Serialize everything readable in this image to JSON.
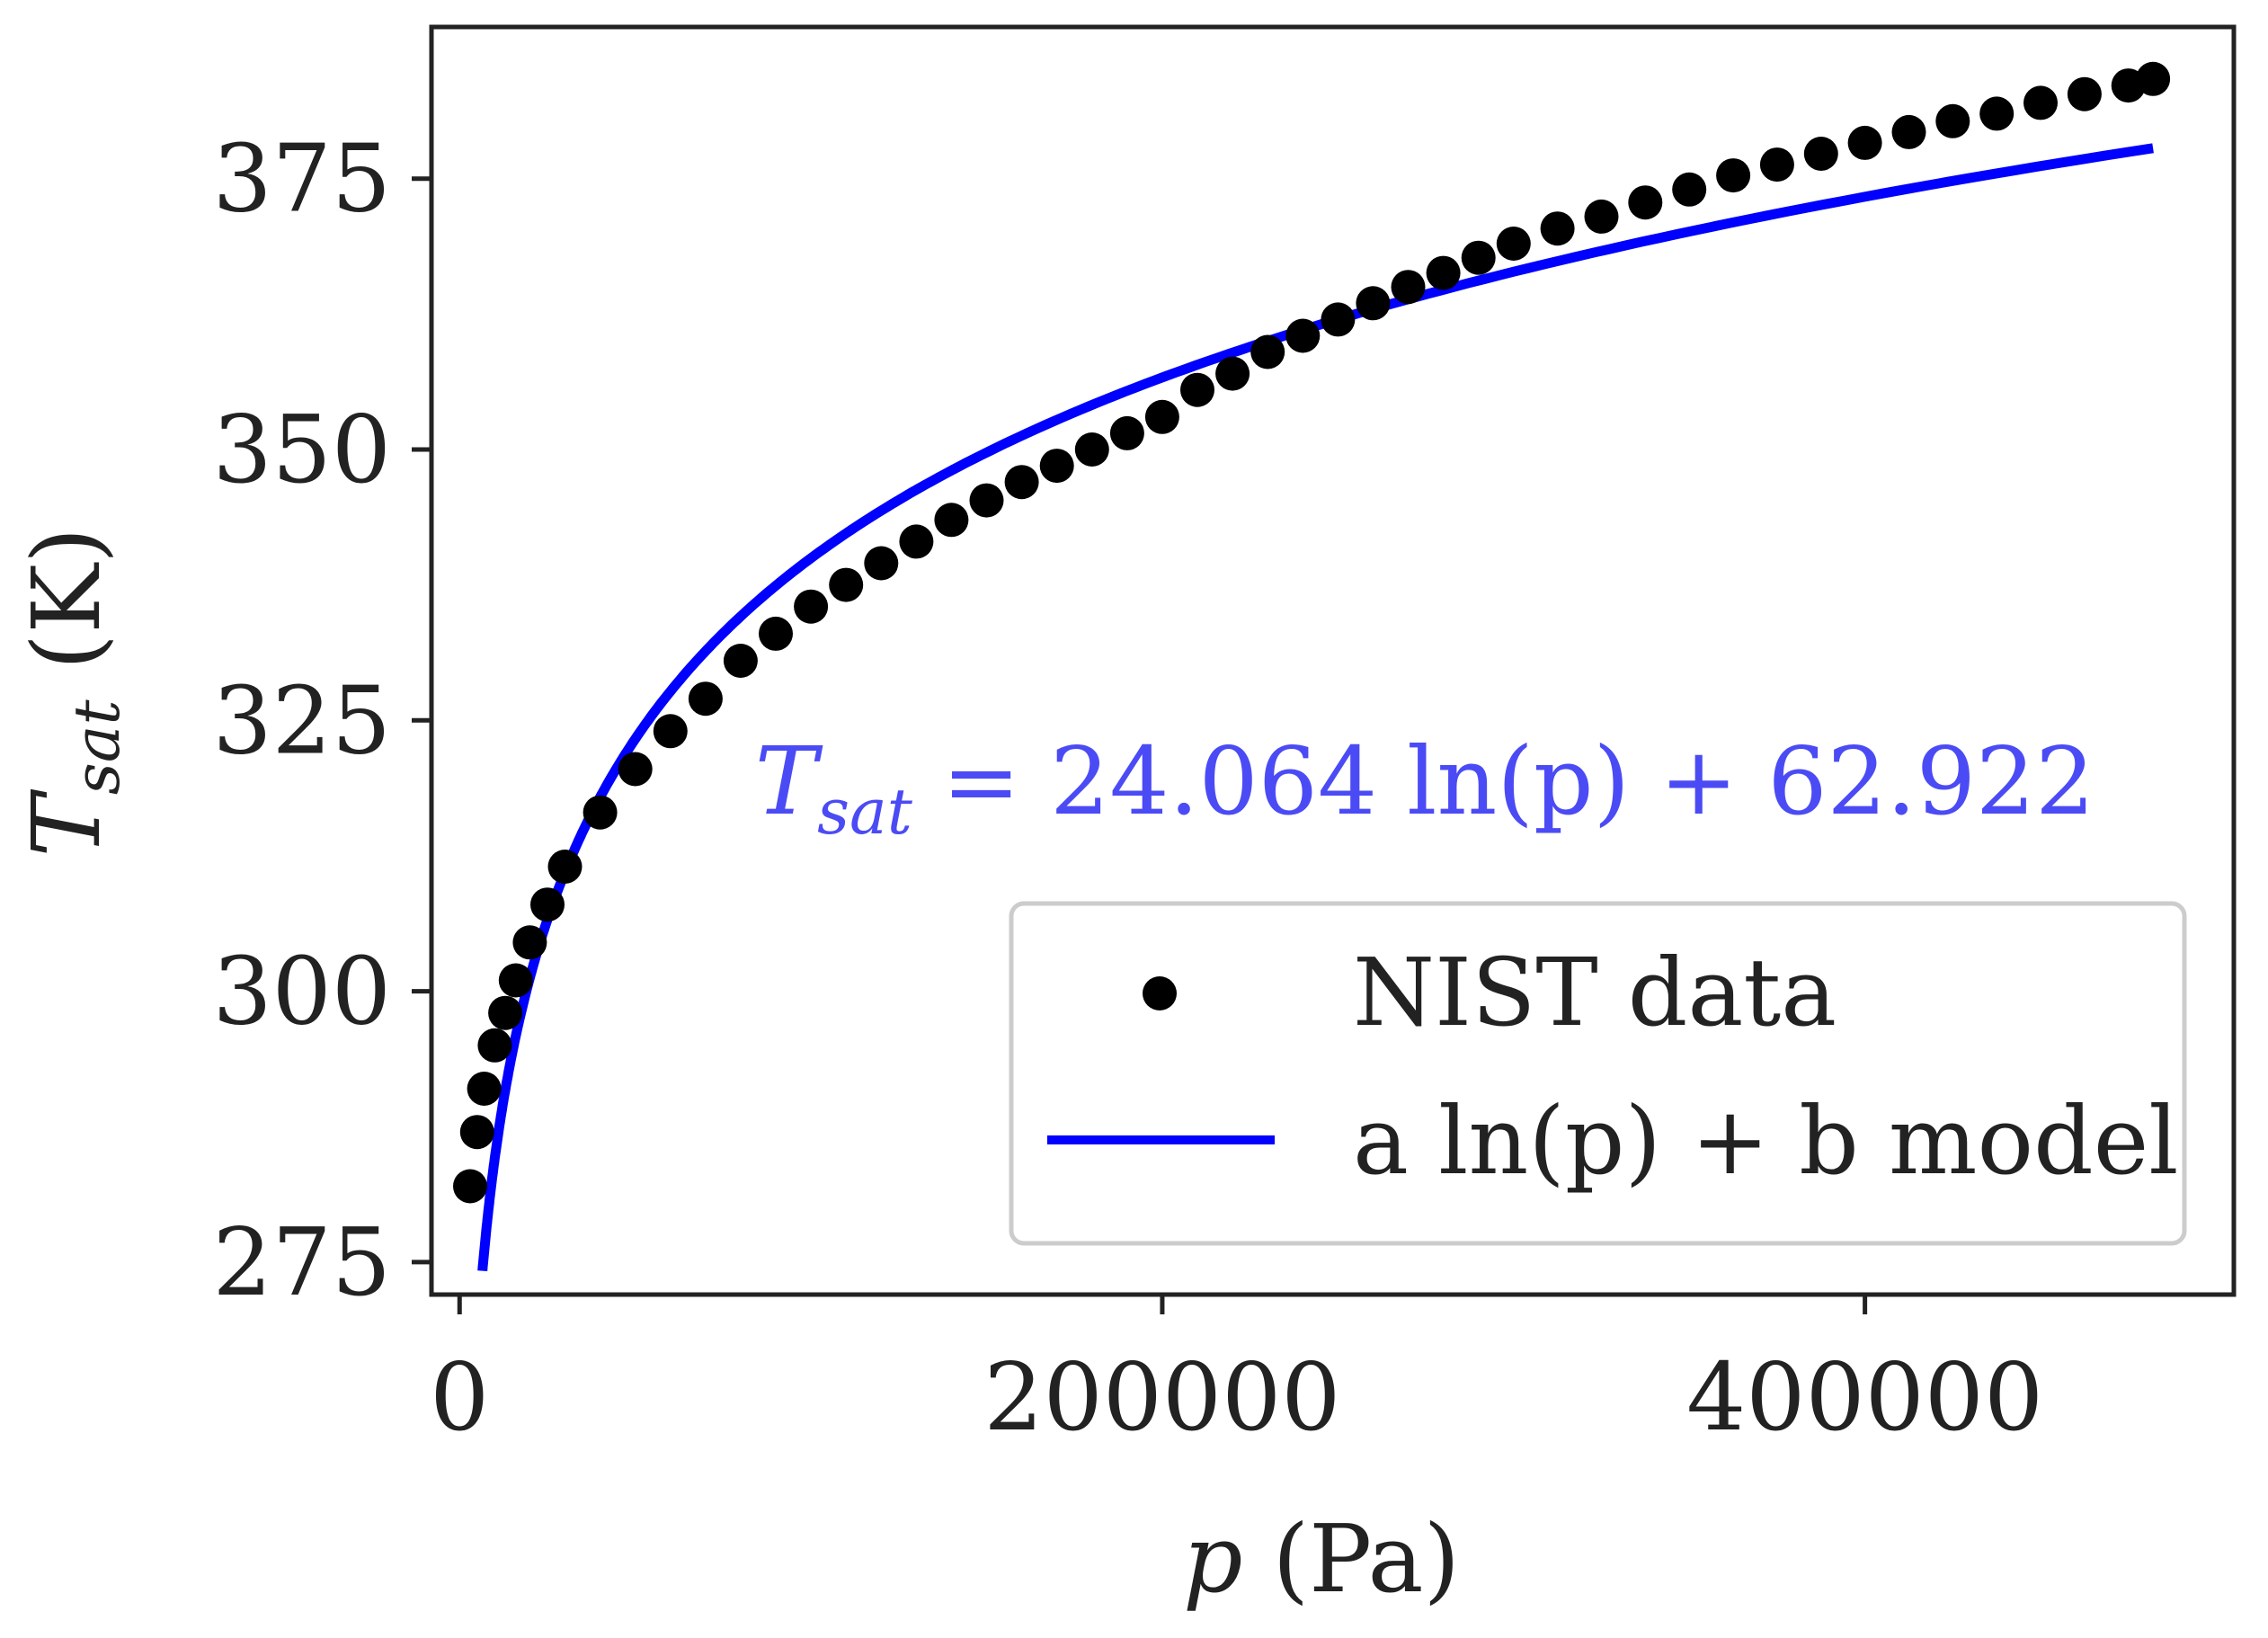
{
  "chart_data": {
    "type": "scatter",
    "title": "",
    "xlabel": {
      "var": "p",
      "unit": "(Pa)"
    },
    "ylabel": {
      "var": "T",
      "sub": "sat",
      "unit": "(K)"
    },
    "xlim": [
      -8000,
      505000
    ],
    "ylim": [
      272,
      389
    ],
    "xticks": [
      0,
      200000,
      400000
    ],
    "xtick_labels": [
      "0",
      "200000",
      "400000"
    ],
    "yticks": [
      275,
      300,
      325,
      350,
      375
    ],
    "ytick_labels": [
      "275",
      "300",
      "325",
      "350",
      "375"
    ],
    "grid": false,
    "legend": {
      "position": "lower-right",
      "entries": [
        "NIST data",
        "a ln(p) + b model"
      ]
    },
    "annotation": {
      "T": "T",
      "sub": "sat",
      "rest": " = 24.064 ln(p) + 62.922",
      "color": "#4b4bf5"
    },
    "series": [
      {
        "name": "NIST data",
        "kind": "scatter",
        "color": "#000000",
        "x": [
          3000,
          5000,
          7000,
          10000,
          13000,
          16000,
          20000,
          25000,
          30000,
          40000,
          50000,
          60000,
          70000,
          80000,
          90000,
          100000,
          110000,
          120000,
          130000,
          140000,
          150000,
          160000,
          170000,
          180000,
          190000,
          200000,
          210000,
          220000,
          230000,
          240000,
          250000,
          260000,
          270000,
          280000,
          290000,
          300000,
          312500,
          325000,
          337500,
          350000,
          362500,
          375000,
          387500,
          400000,
          412500,
          425000,
          437500,
          450000,
          462500,
          475000,
          482000
        ],
        "y": [
          282.0,
          287.0,
          291.0,
          295.0,
          298.0,
          301.0,
          304.5,
          308.0,
          311.5,
          316.5,
          320.5,
          324.0,
          327.0,
          330.5,
          333.0,
          335.5,
          337.5,
          339.5,
          341.5,
          343.5,
          345.3,
          347.0,
          348.5,
          350.0,
          351.5,
          353.0,
          355.5,
          357.0,
          359.0,
          360.5,
          362.0,
          363.5,
          365.0,
          366.3,
          367.7,
          369.0,
          370.4,
          371.5,
          372.8,
          374.0,
          375.3,
          376.3,
          377.3,
          378.3,
          379.3,
          380.3,
          381.0,
          382.0,
          382.8,
          383.6,
          384.2
        ]
      },
      {
        "name": "a ln(p) + b model",
        "kind": "line",
        "color": "#0000ff",
        "a": 24.064,
        "b": 62.922,
        "x_range": [
          6500,
          482000
        ]
      }
    ]
  }
}
